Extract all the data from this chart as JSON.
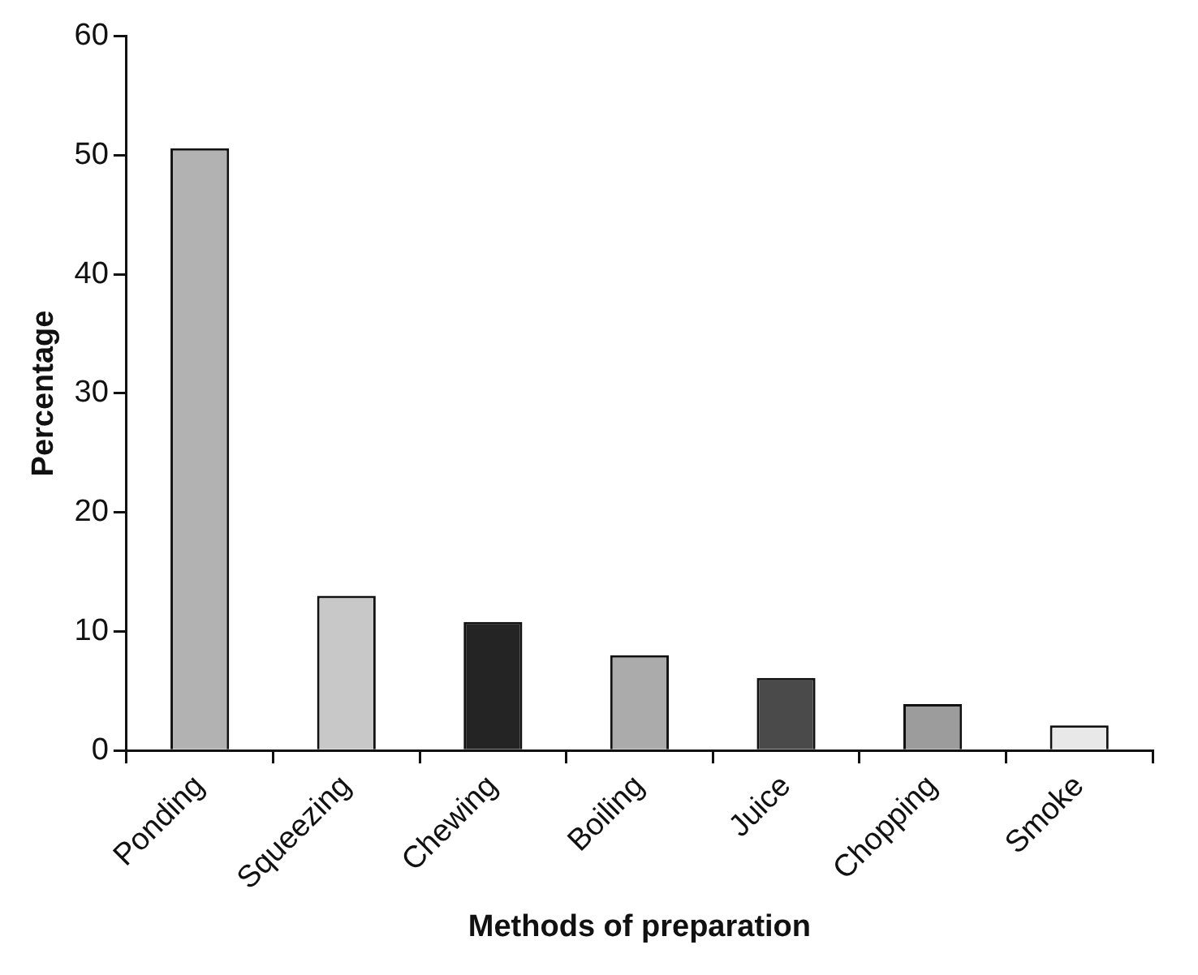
{
  "chart_data": {
    "type": "bar",
    "xlabel": "Methods of preparation",
    "ylabel": "Percentage",
    "categories": [
      "Ponding",
      "Squeezing",
      "Chewing",
      "Boiling",
      "Juice",
      "Chopping",
      "Smoke"
    ],
    "values": [
      50.6,
      13.0,
      10.8,
      8.0,
      6.1,
      3.9,
      2.1
    ],
    "colors": [
      "#b2b2b2",
      "#c8c8c8",
      "#242424",
      "#ababab",
      "#4a4a4a",
      "#9c9c9c",
      "#e8e8e8"
    ],
    "ylim": [
      0,
      60
    ],
    "yticks": [
      0,
      10,
      20,
      30,
      40,
      50,
      60
    ],
    "grid": false,
    "legend": false
  }
}
